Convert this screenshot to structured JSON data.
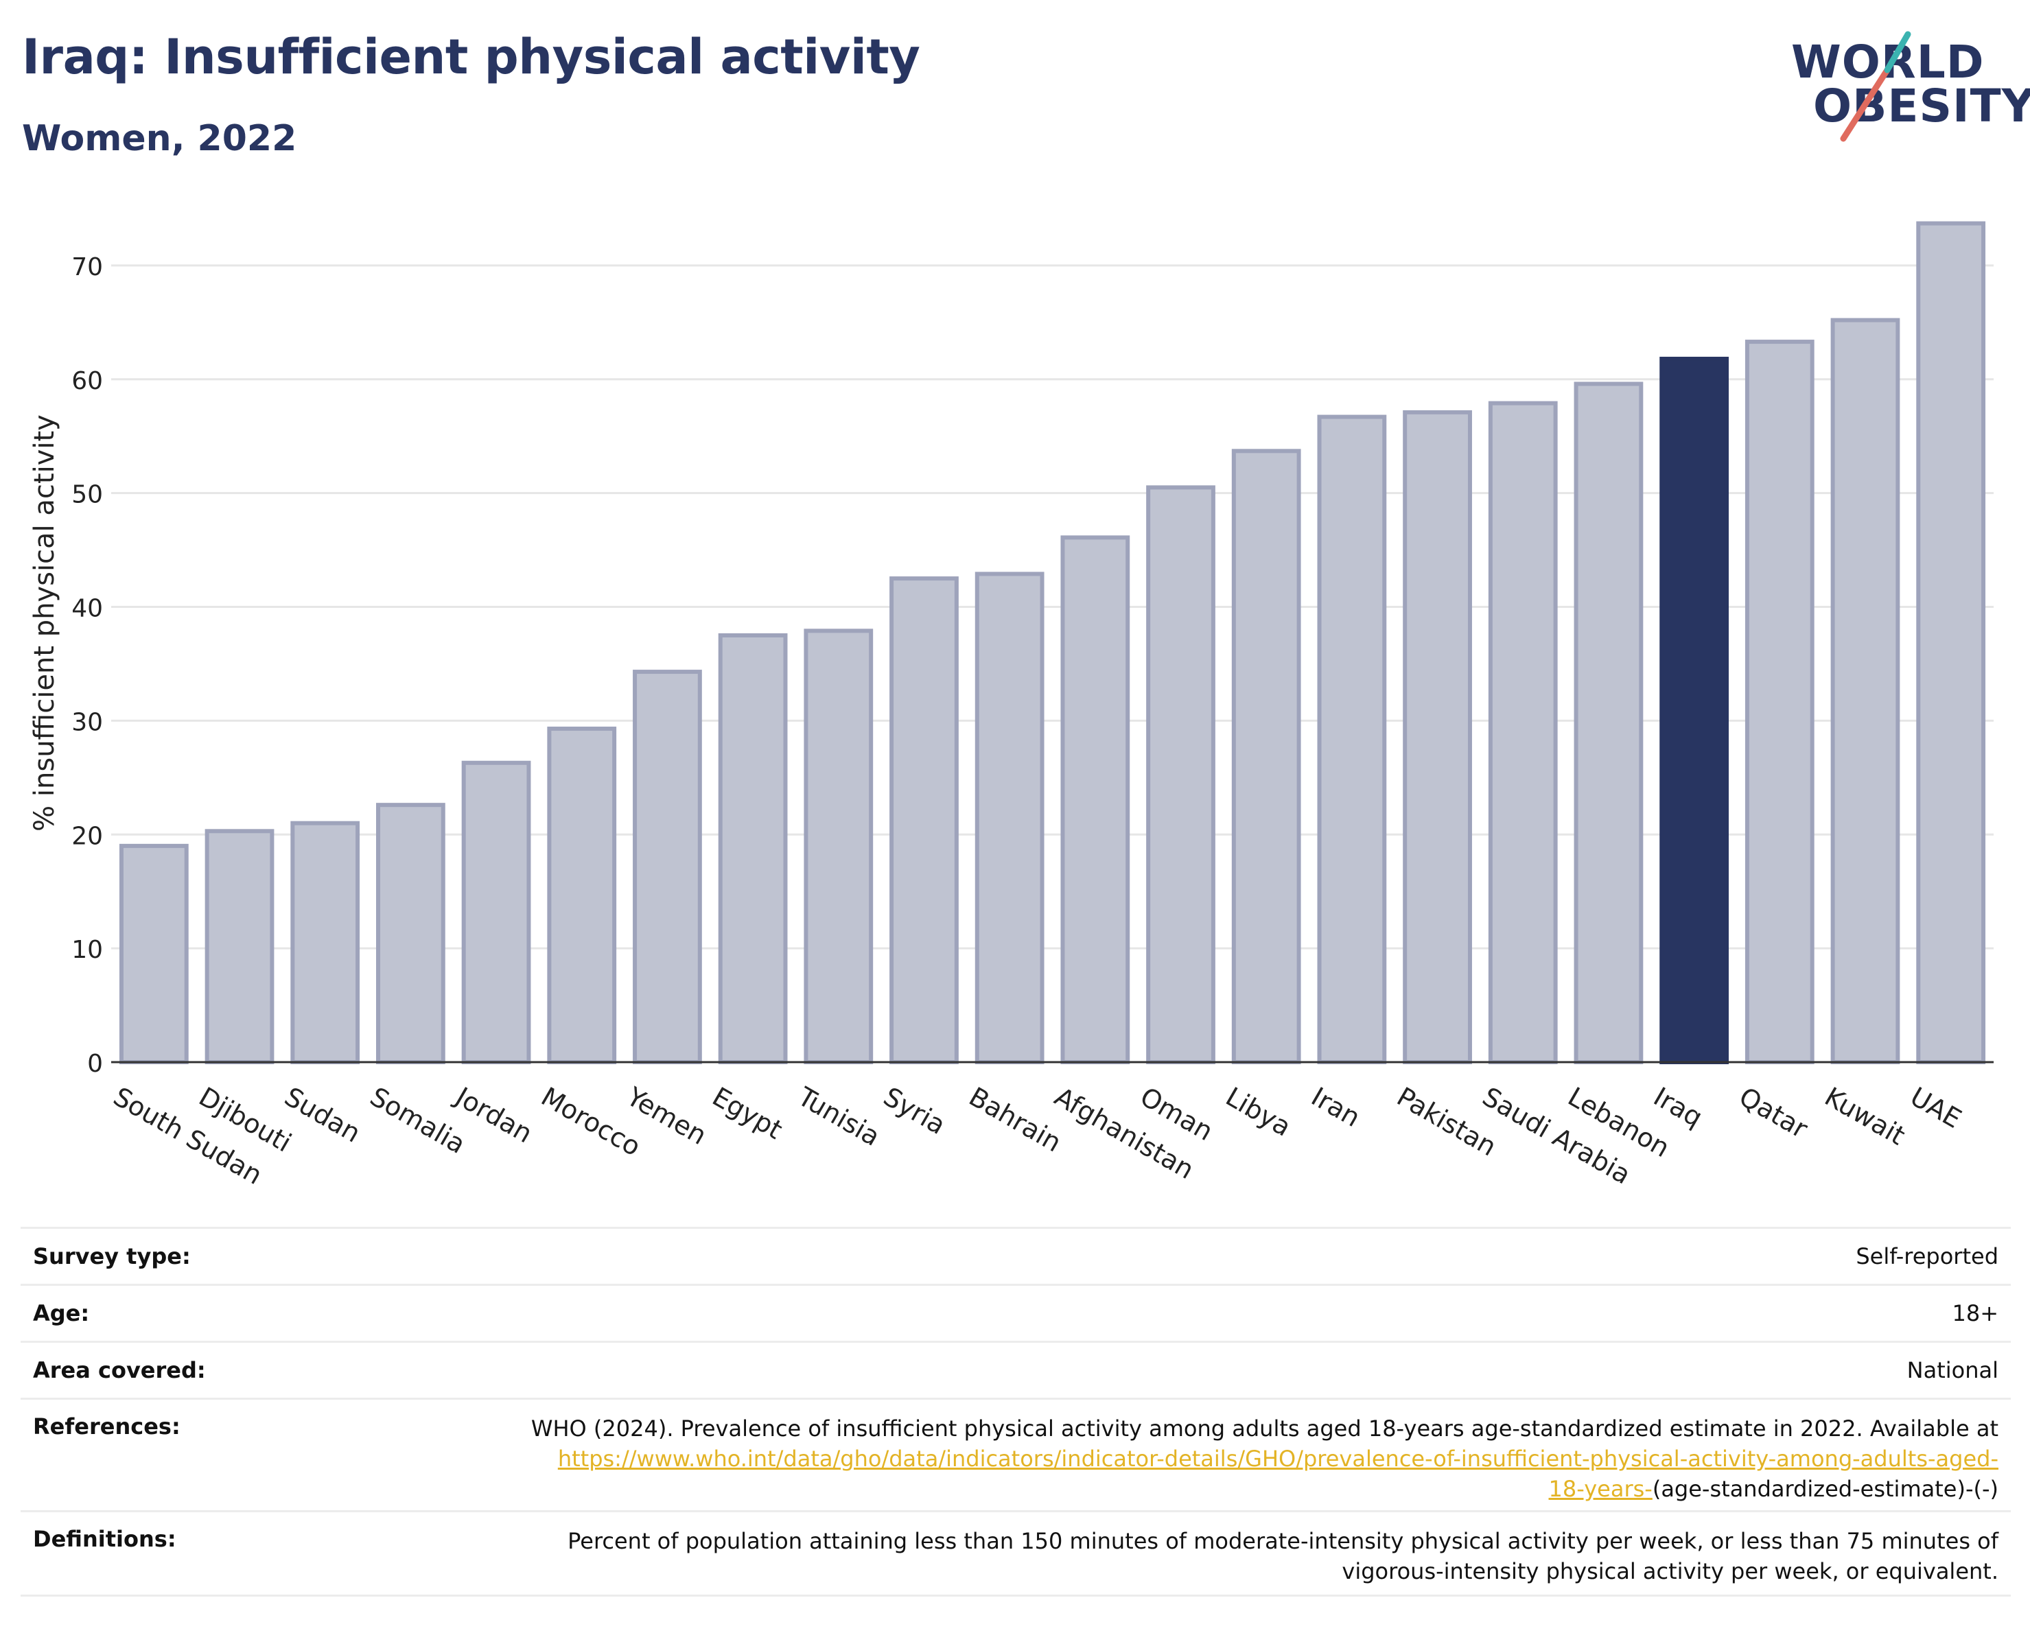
{
  "title": "Iraq: Insufficient physical activity",
  "subtitle": "Women, 2022",
  "logo": {
    "line1": "WORLD",
    "line2": "OBESITY"
  },
  "colors": {
    "bar": "#bfc3d1",
    "bar_edge": "#9ea3bb",
    "highlight": "#283561",
    "title": "#283561",
    "grid": "#e6e6e6",
    "link": "#e3b325",
    "logo_teal": "#3bb3b0",
    "logo_red": "#e06b5e"
  },
  "chart_data": {
    "type": "bar",
    "ylabel": "% insufficient physical activity",
    "xlabel": "",
    "ylim": [
      0,
      75
    ],
    "yticks": [
      0,
      10,
      20,
      30,
      40,
      50,
      60,
      70
    ],
    "grid": true,
    "highlight": "Iraq",
    "categories": [
      "South Sudan",
      "Djibouti",
      "Sudan",
      "Somalia",
      "Jordan",
      "Morocco",
      "Yemen",
      "Egypt",
      "Tunisia",
      "Syria",
      "Bahrain",
      "Afghanistan",
      "Oman",
      "Libya",
      "Iran",
      "Pakistan",
      "Saudi Arabia",
      "Lebanon",
      "Iraq",
      "Qatar",
      "Kuwait",
      "UAE"
    ],
    "values": [
      19.0,
      20.3,
      21.0,
      22.6,
      26.3,
      29.3,
      34.3,
      37.5,
      37.9,
      42.5,
      42.9,
      46.1,
      50.5,
      53.7,
      56.7,
      57.1,
      57.9,
      59.6,
      61.8,
      63.3,
      65.2,
      73.7
    ]
  },
  "meta": [
    {
      "label": "Survey type:",
      "value": "Self-reported"
    },
    {
      "label": "Age:",
      "value": "18+"
    },
    {
      "label": "Area covered:",
      "value": "National"
    },
    {
      "label": "References:",
      "value": "WHO (2024). Prevalence of insufficient physical activity among adults aged 18-years age-standardized estimate in 2022. Available at",
      "link_line1": "https://www.who.int/data/gho/data/indicators/indicator-details/GHO/prevalence-of-insufficient-physical-activity-among-adults-aged-",
      "link_line2": "18-years-",
      "suffix": "(age-standardized-estimate)-(-)"
    },
    {
      "label": "Definitions:",
      "value_line1": "Percent of population attaining less than 150 minutes of moderate-intensity physical activity per week, or less than 75 minutes of",
      "value_line2": "vigorous-intensity physical activity per week, or equivalent."
    }
  ]
}
